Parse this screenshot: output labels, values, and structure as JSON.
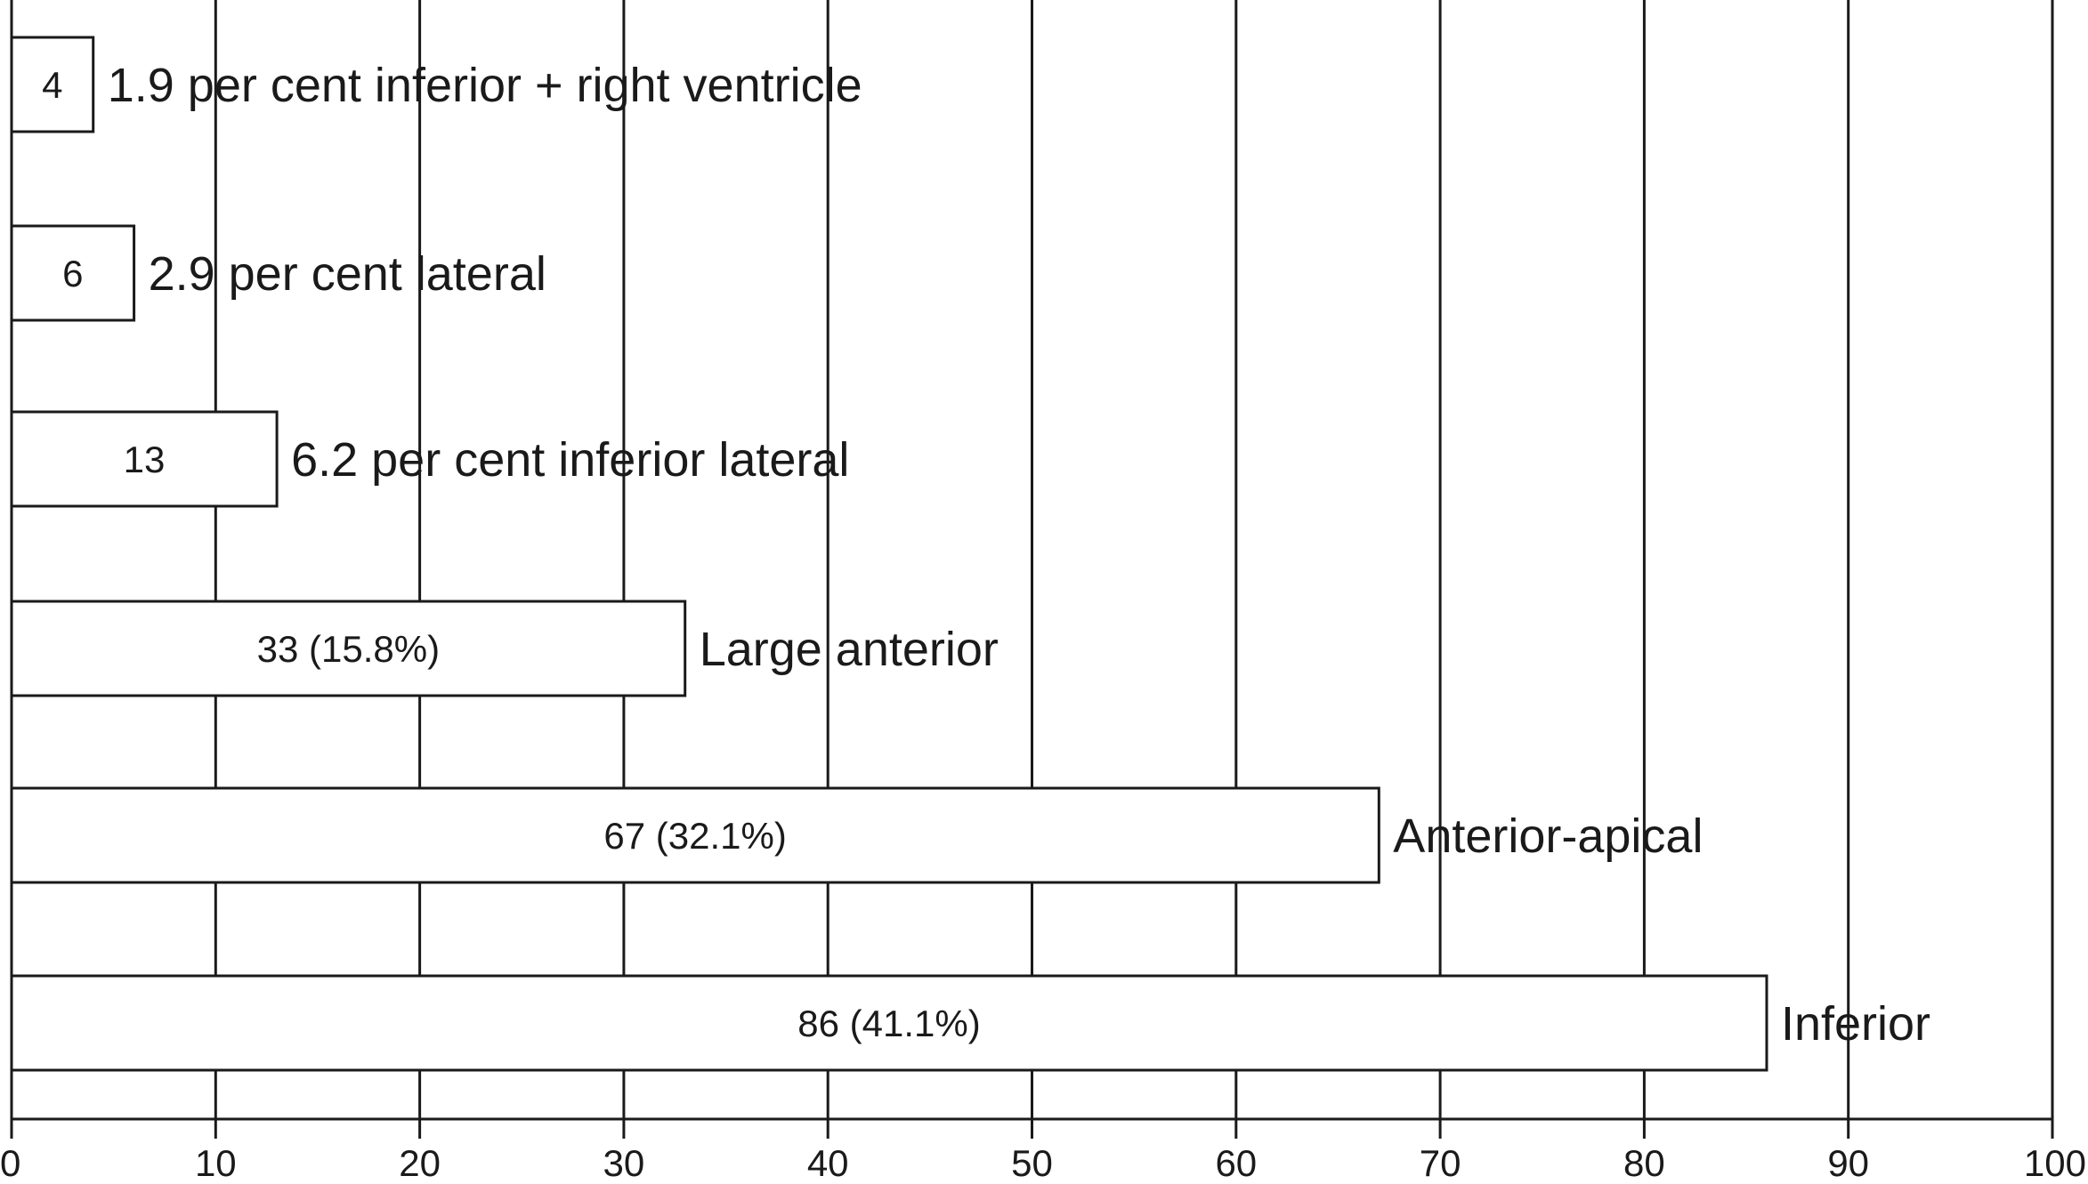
{
  "chart_data": {
    "type": "bar",
    "orientation": "horizontal",
    "categories": [
      "1.9 per cent inferior + right ventricle",
      "2.9 per cent lateral",
      "6.2 per cent inferior lateral",
      "Large anterior",
      "Anterior-apical",
      "Inferior"
    ],
    "values": [
      4,
      6,
      13,
      33,
      67,
      86
    ],
    "value_labels": [
      "4",
      "6",
      "13",
      "33 (15.8%)",
      "67 (32.1%)",
      "86 (41.1%)"
    ],
    "xlim": [
      0,
      100
    ],
    "xticks": [
      0,
      10,
      20,
      30,
      40,
      50,
      60,
      70,
      80,
      90,
      100
    ],
    "xtick_labels": [
      "0",
      "10",
      "20",
      "30",
      "40",
      "50",
      "60",
      "70",
      "80",
      "90",
      "100"
    ],
    "grid": "vertical",
    "title": "",
    "xlabel": "",
    "ylabel": ""
  }
}
